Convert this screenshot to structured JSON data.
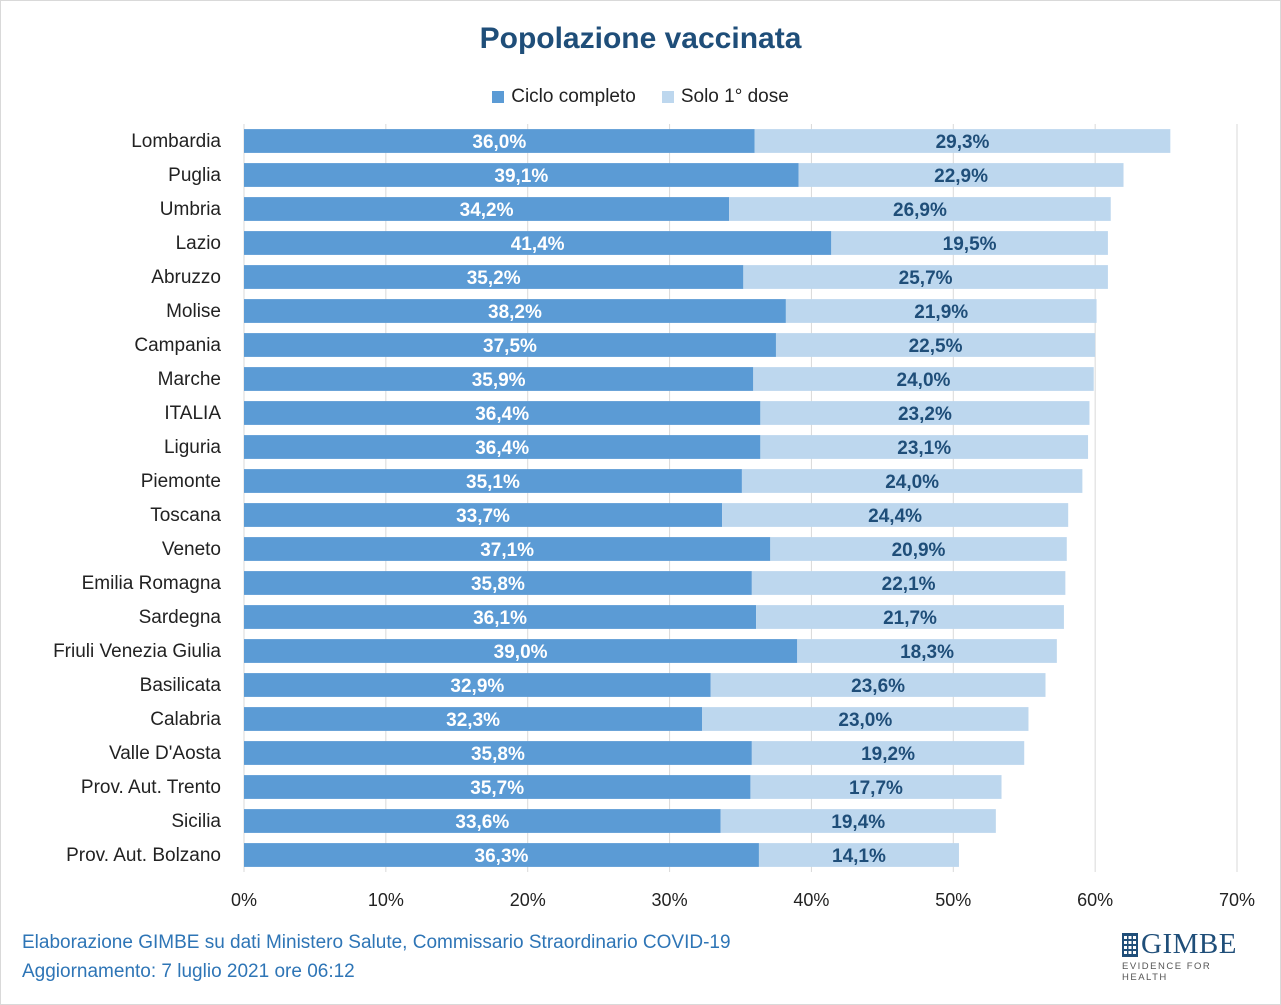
{
  "chart_data": {
    "type": "bar",
    "orientation": "horizontal",
    "stacked": true,
    "title": "Popolazione vaccinata",
    "categories": [
      "Lombardia",
      "Puglia",
      "Umbria",
      "Lazio",
      "Abruzzo",
      "Molise",
      "Campania",
      "Marche",
      "ITALIA",
      "Liguria",
      "Piemonte",
      "Toscana",
      "Veneto",
      "Emilia Romagna",
      "Sardegna",
      "Friuli Venezia Giulia",
      "Basilicata",
      "Calabria",
      "Valle D'Aosta",
      "Prov. Aut. Trento",
      "Sicilia",
      "Prov. Aut. Bolzano"
    ],
    "series": [
      {
        "name": "Ciclo completo",
        "color": "#5b9bd5",
        "values": [
          36.0,
          39.1,
          34.2,
          41.4,
          35.2,
          38.2,
          37.5,
          35.9,
          36.4,
          36.4,
          35.1,
          33.7,
          37.1,
          35.8,
          36.1,
          39.0,
          32.9,
          32.3,
          35.8,
          35.7,
          33.6,
          36.3
        ],
        "labels": [
          "36,0%",
          "39,1%",
          "34,2%",
          "41,4%",
          "35,2%",
          "38,2%",
          "37,5%",
          "35,9%",
          "36,4%",
          "36,4%",
          "35,1%",
          "33,7%",
          "37,1%",
          "35,8%",
          "36,1%",
          "39,0%",
          "32,9%",
          "32,3%",
          "35,8%",
          "35,7%",
          "33,6%",
          "36,3%"
        ]
      },
      {
        "name": "Solo 1° dose",
        "color": "#bdd7ee",
        "values": [
          29.3,
          22.9,
          26.9,
          19.5,
          25.7,
          21.9,
          22.5,
          24.0,
          23.2,
          23.1,
          24.0,
          24.4,
          20.9,
          22.1,
          21.7,
          18.3,
          23.6,
          23.0,
          19.2,
          17.7,
          19.4,
          14.1
        ],
        "labels": [
          "29,3%",
          "22,9%",
          "26,9%",
          "19,5%",
          "25,7%",
          "21,9%",
          "22,5%",
          "24,0%",
          "23,2%",
          "23,1%",
          "24,0%",
          "24,4%",
          "20,9%",
          "22,1%",
          "21,7%",
          "18,3%",
          "23,6%",
          "23,0%",
          "19,2%",
          "17,7%",
          "19,4%",
          "14,1%"
        ]
      }
    ],
    "xlim": [
      0,
      70
    ],
    "xticks": [
      0,
      10,
      20,
      30,
      40,
      50,
      60,
      70
    ],
    "xtick_labels": [
      "0%",
      "10%",
      "20%",
      "30%",
      "40%",
      "50%",
      "60%",
      "70%"
    ],
    "grid": "vertical",
    "legend_position": "top"
  },
  "footer": {
    "line1": "Elaborazione GIMBE su dati Ministero Salute, Commissario Straordinario COVID-19",
    "line2": "Aggiornamento: 7 luglio 2021 ore 06:12"
  },
  "logo": {
    "name": "GIMBE",
    "tagline": "EVIDENCE FOR HEALTH"
  },
  "colors": {
    "title": "#1f4e79",
    "footer": "#2e75b6",
    "label_dark": "#1f4e79"
  }
}
